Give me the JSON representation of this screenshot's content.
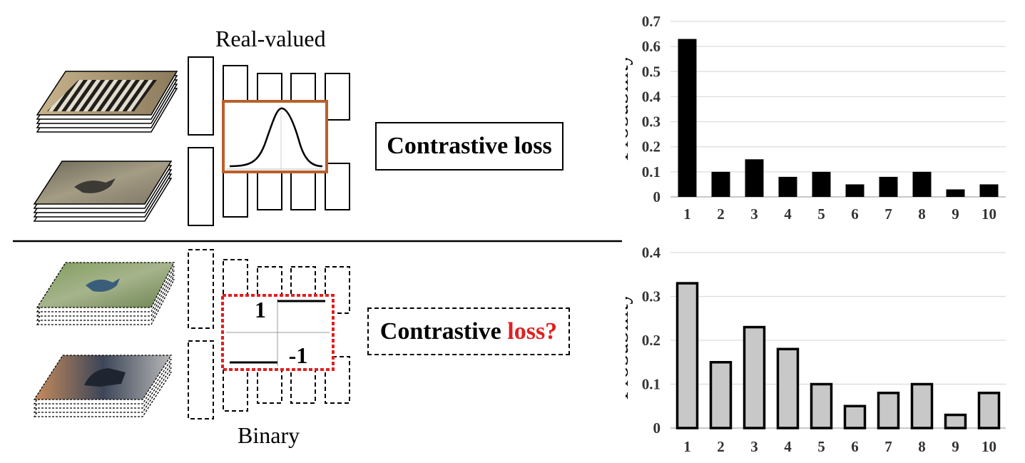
{
  "top_panel": {
    "header": "Real-valued",
    "loss_label": "Contrastive loss"
  },
  "bottom_panel": {
    "header": "Binary",
    "loss_label_prefix": "Contrastive",
    "loss_label_highlight": "loss?",
    "step_high_label": "1",
    "step_low_label": "-1"
  },
  "colors": {
    "gaussian_frame": "#b8602a",
    "sign_frame": "#e02020",
    "question_text": "#e02020",
    "top_bars": "#000000",
    "bottom_bars": "#c8c8c8"
  },
  "images": [
    {
      "name": "zebra-image-stack"
    },
    {
      "name": "bird-on-ground-image-stack"
    },
    {
      "name": "colorful-bird-image-stack"
    },
    {
      "name": "dogs-image-stack"
    }
  ],
  "chart_data": [
    {
      "type": "bar",
      "ylabel": "Probability",
      "categories": [
        "1",
        "2",
        "3",
        "4",
        "5",
        "6",
        "7",
        "8",
        "9",
        "10"
      ],
      "values": [
        0.63,
        0.1,
        0.15,
        0.08,
        0.1,
        0.05,
        0.08,
        0.1,
        0.03,
        0.05
      ],
      "ylim": [
        0,
        0.7
      ],
      "yticks": [
        "0",
        "0.1",
        "0.2",
        "0.3",
        "0.4",
        "0.5",
        "0.6",
        "0.7"
      ],
      "grid": true,
      "bar_style": "solid-black"
    },
    {
      "type": "bar",
      "ylabel": "Probability",
      "categories": [
        "1",
        "2",
        "3",
        "4",
        "5",
        "6",
        "7",
        "8",
        "9",
        "10"
      ],
      "values": [
        0.33,
        0.15,
        0.23,
        0.18,
        0.1,
        0.05,
        0.08,
        0.1,
        0.03,
        0.08
      ],
      "ylim": [
        0,
        0.4
      ],
      "yticks": [
        "0",
        "0.1",
        "0.2",
        "0.3",
        "0.4"
      ],
      "grid": true,
      "bar_style": "gray-with-black-outline"
    }
  ]
}
